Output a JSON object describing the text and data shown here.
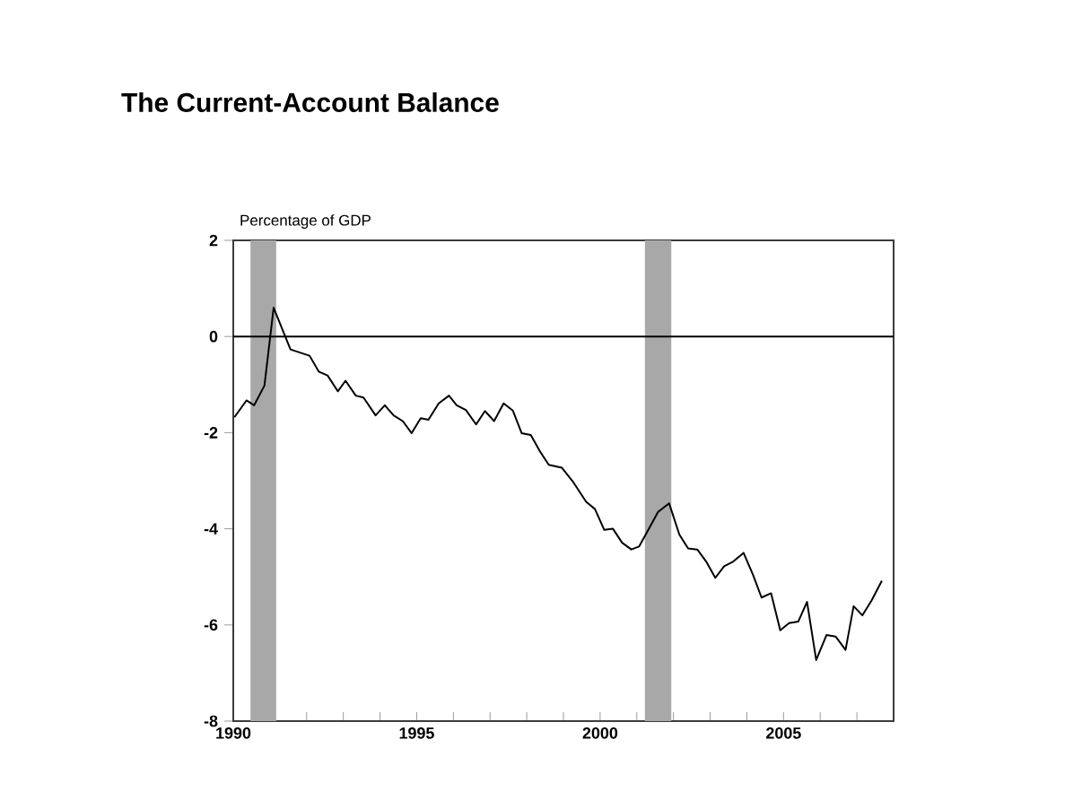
{
  "chart_data": {
    "type": "line",
    "title": "The Current-Account Balance",
    "ylabel": "Percentage of GDP",
    "xlim": [
      1990,
      2008
    ],
    "ylim": [
      -8,
      2
    ],
    "xticks": [
      1990,
      {
        "value": 1991,
        "label": null
      },
      {
        "value": 1992,
        "label": null
      },
      {
        "value": 1993,
        "label": null
      },
      {
        "value": 1994,
        "label": null
      },
      1995,
      {
        "value": 1996,
        "label": null
      },
      {
        "value": 1997,
        "label": null
      },
      {
        "value": 1998,
        "label": null
      },
      {
        "value": 1999,
        "label": null
      },
      2000,
      {
        "value": 2001,
        "label": null
      },
      {
        "value": 2002,
        "label": null
      },
      {
        "value": 2003,
        "label": null
      },
      {
        "value": 2004,
        "label": null
      },
      2005,
      {
        "value": 2006,
        "label": null
      },
      {
        "value": 2007,
        "label": null
      }
    ],
    "yticks": [
      -8,
      -6,
      -4,
      -2,
      0,
      2
    ],
    "grid": false,
    "marker": "none",
    "line_style": "solid",
    "ref_lines": [
      {
        "axis": "y",
        "value": 0,
        "color": "#000000"
      }
    ],
    "bands": [
      {
        "axis": "x",
        "from": 1990.47,
        "to": 1991.17,
        "color": "#a8a8a8"
      },
      {
        "axis": "x",
        "from": 2001.22,
        "to": 2001.94,
        "color": "#a8a8a8"
      }
    ],
    "series": [
      {
        "color": "#000000",
        "x": [
          1990.03,
          1990.36,
          1990.57,
          1990.85,
          1991.1,
          1991.56,
          1992.08,
          1992.33,
          1992.57,
          1992.85,
          1993.06,
          1993.34,
          1993.55,
          1993.88,
          1994.13,
          1994.37,
          1994.62,
          1994.86,
          1995.11,
          1995.32,
          1995.6,
          1995.88,
          1996.09,
          1996.34,
          1996.62,
          1996.86,
          1997.11,
          1997.37,
          1997.62,
          1997.86,
          1998.11,
          1998.36,
          1998.6,
          1998.96,
          1999.25,
          1999.62,
          1999.86,
          2000.11,
          2000.35,
          2000.6,
          2000.85,
          2001.06,
          2001.33,
          2001.58,
          2001.88,
          2002.16,
          2002.4,
          2002.65,
          2002.89,
          2003.14,
          2003.38,
          2003.63,
          2003.91,
          2004.17,
          2004.4,
          2004.66,
          2004.91,
          2005.15,
          2005.4,
          2005.64,
          2005.89,
          2006.17,
          2006.42,
          2006.69,
          2006.91,
          2007.15,
          2007.4,
          2007.68
        ],
        "values": [
          -1.68,
          -1.33,
          -1.43,
          -1.02,
          0.6,
          -0.27,
          -0.4,
          -0.73,
          -0.81,
          -1.14,
          -0.92,
          -1.23,
          -1.27,
          -1.64,
          -1.43,
          -1.64,
          -1.76,
          -2.01,
          -1.7,
          -1.73,
          -1.39,
          -1.23,
          -1.43,
          -1.53,
          -1.83,
          -1.55,
          -1.76,
          -1.39,
          -1.54,
          -2.01,
          -2.05,
          -2.39,
          -2.67,
          -2.73,
          -3.01,
          -3.44,
          -3.59,
          -4.02,
          -4.0,
          -4.29,
          -4.43,
          -4.37,
          -4.0,
          -3.65,
          -3.47,
          -4.12,
          -4.41,
          -4.43,
          -4.68,
          -5.02,
          -4.78,
          -4.68,
          -4.5,
          -4.96,
          -5.43,
          -5.34,
          -6.11,
          -5.96,
          -5.93,
          -5.52,
          -6.73,
          -6.21,
          -6.24,
          -6.52,
          -5.61,
          -5.8,
          -5.49,
          -5.08
        ]
      }
    ]
  }
}
